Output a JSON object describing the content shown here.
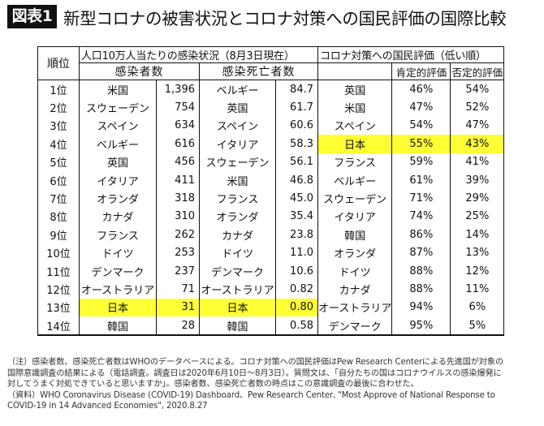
{
  "header": {
    "figure_label": "図表1",
    "title": "新型コロナの被害状況とコロナ対策への国民評価の国際比較"
  },
  "table": {
    "headers": {
      "rank": "順位",
      "infection_group": "人口10万人当たりの感染状況（8月3日現在）",
      "cases": "感染者数",
      "deaths": "感染死亡者数",
      "rating_group": "コロナ対策への国民評価（低い順）",
      "positive": "肯定的評価",
      "negative": "否定的評価"
    },
    "rows": [
      {
        "rank": "1位",
        "cases_country": "米国",
        "cases": "1,396",
        "deaths_country": "ベルギー",
        "deaths": "84.7",
        "rating_country": "英国",
        "positive": "46%",
        "negative": "54%"
      },
      {
        "rank": "2位",
        "cases_country": "スウェーデン",
        "cases": "754",
        "deaths_country": "英国",
        "deaths": "61.7",
        "rating_country": "米国",
        "positive": "47%",
        "negative": "52%"
      },
      {
        "rank": "3位",
        "cases_country": "スペイン",
        "cases": "634",
        "deaths_country": "スペイン",
        "deaths": "60.6",
        "rating_country": "スペイン",
        "positive": "54%",
        "negative": "47%"
      },
      {
        "rank": "4位",
        "cases_country": "ベルギー",
        "cases": "616",
        "deaths_country": "イタリア",
        "deaths": "58.3",
        "rating_country": "日本",
        "positive": "55%",
        "negative": "43%"
      },
      {
        "rank": "5位",
        "cases_country": "英国",
        "cases": "456",
        "deaths_country": "スウェーデン",
        "deaths": "56.1",
        "rating_country": "フランス",
        "positive": "59%",
        "negative": "41%"
      },
      {
        "rank": "6位",
        "cases_country": "イタリア",
        "cases": "411",
        "deaths_country": "米国",
        "deaths": "46.8",
        "rating_country": "ベルギー",
        "positive": "61%",
        "negative": "39%"
      },
      {
        "rank": "7位",
        "cases_country": "オランダ",
        "cases": "318",
        "deaths_country": "フランス",
        "deaths": "45.0",
        "rating_country": "スウェーデン",
        "positive": "71%",
        "negative": "29%"
      },
      {
        "rank": "8位",
        "cases_country": "カナダ",
        "cases": "310",
        "deaths_country": "オランダ",
        "deaths": "35.4",
        "rating_country": "イタリア",
        "positive": "74%",
        "negative": "25%"
      },
      {
        "rank": "9位",
        "cases_country": "フランス",
        "cases": "262",
        "deaths_country": "カナダ",
        "deaths": "23.8",
        "rating_country": "韓国",
        "positive": "86%",
        "negative": "14%"
      },
      {
        "rank": "10位",
        "cases_country": "ドイツ",
        "cases": "253",
        "deaths_country": "ドイツ",
        "deaths": "11.0",
        "rating_country": "オランダ",
        "positive": "87%",
        "negative": "13%"
      },
      {
        "rank": "11位",
        "cases_country": "デンマーク",
        "cases": "237",
        "deaths_country": "デンマーク",
        "deaths": "10.6",
        "rating_country": "ドイツ",
        "positive": "88%",
        "negative": "12%"
      },
      {
        "rank": "12位",
        "cases_country": "オーストラリア",
        "cases": "71",
        "deaths_country": "オーストラリア",
        "deaths": "0.82",
        "rating_country": "カナダ",
        "positive": "88%",
        "negative": "11%"
      },
      {
        "rank": "13位",
        "cases_country": "日本",
        "cases": "31",
        "deaths_country": "日本",
        "deaths": "0.80",
        "rating_country": "オーストラリア",
        "positive": "94%",
        "negative": "6%"
      },
      {
        "rank": "14位",
        "cases_country": "韓国",
        "cases": "28",
        "deaths_country": "韓国",
        "deaths": "0.58",
        "rating_country": "デンマーク",
        "positive": "95%",
        "negative": "5%"
      }
    ],
    "highlight_color": "#ffff33",
    "highlights": [
      "row 4: 日本 rating (55% / 43%)",
      "row 13: 日本 cases (31) and deaths (0.80)"
    ]
  },
  "notes": {
    "line1": "（注）感染者数、感染死亡者数はWHOのデータベースによる。コロナ対策への国民評価はPew Research Centerによる先進国が対象の",
    "line2": "国際意識調査の結果による（電話調査。調査日は2020年6月10日～8月3日）。質問文は、「自分たちの国はコロナウイルスの感染爆発に",
    "line3": "対してうまく対処できていると思いますか」。感染者数、感染死亡者数の時点はこの意識調査の最後に合わせた。",
    "line4": "（資料）WHO Coronavirus Disease (COVID-19) Dashboard、Pew Research Center, \"Most Approve of National Response to",
    "line5": "COVID-19 in 14 Advanced Economies\", 2020.8.27"
  }
}
